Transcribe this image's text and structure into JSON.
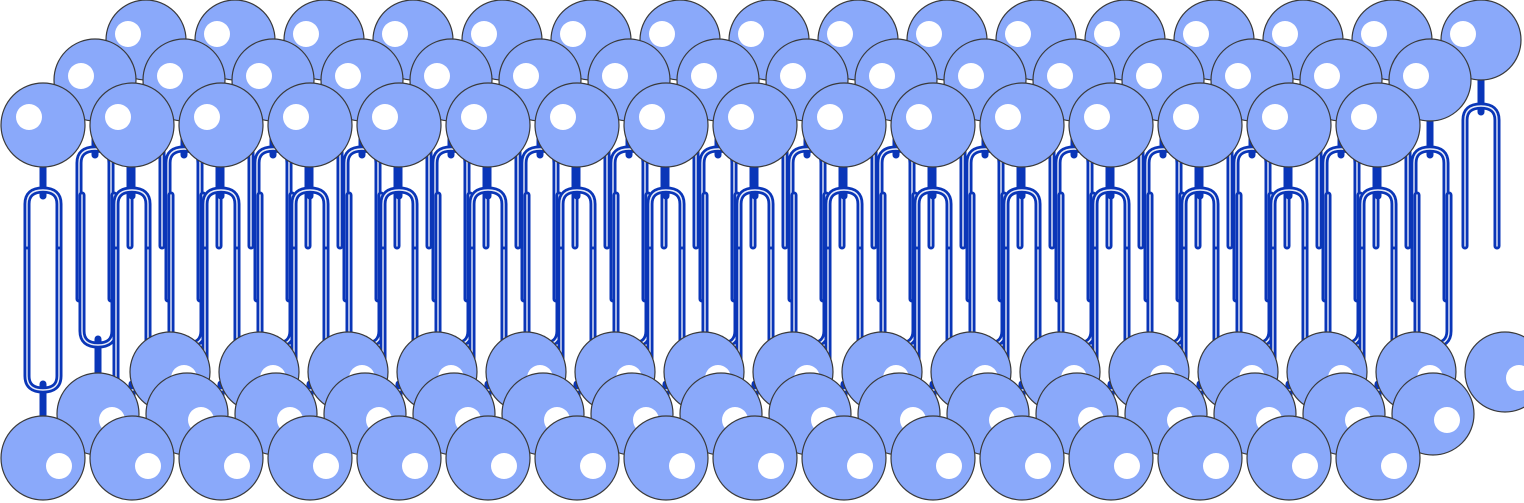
{
  "diagram": {
    "kind": "phospholipid-bilayer",
    "rows": [
      {
        "id": "upper-back",
        "leaflet": "upper",
        "count": 16
      },
      {
        "id": "upper-middle",
        "leaflet": "upper",
        "count": 16
      },
      {
        "id": "upper-front",
        "leaflet": "upper",
        "count": 16
      },
      {
        "id": "lower-back",
        "leaflet": "lower",
        "count": 16
      },
      {
        "id": "lower-middle",
        "leaflet": "lower",
        "count": 16
      },
      {
        "id": "lower-front",
        "leaflet": "lower",
        "count": 16
      }
    ],
    "colors": {
      "head_fill": "#8aa9fa",
      "head_stroke": "#3a3a3a",
      "highlight": "#ffffff",
      "tail": "#0a36b8",
      "background": "#ffffff"
    }
  }
}
